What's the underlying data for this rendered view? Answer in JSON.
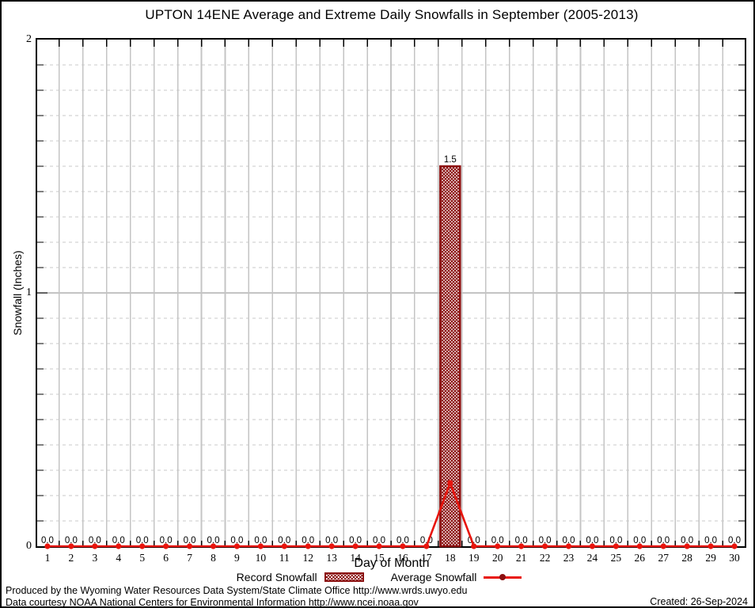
{
  "title": "UPTON 14ENE Average and Extreme Daily Snowfalls in September (2005-2013)",
  "axes": {
    "xlabel": "Day of Month",
    "ylabel": "Snowfall (Inches)"
  },
  "legend": {
    "record_label": "Record Snowfall",
    "average_label": "Average Snowfall"
  },
  "footer": {
    "produced_by": "Produced by the Wyoming Water Resources Data System/State Climate Office http://www.wrds.uwyo.edu",
    "data_courtesy": "Data courtesy NOAA National Centers for Environmental Information http://www.ncei.noaa.gov",
    "created": "Created: 26-Sep-2024"
  },
  "colors": {
    "record_bar": "#8b0f0f",
    "average_line": "#e8140c",
    "grid_solid": "#c4c4c4",
    "grid_dashed": "#c9c9c9",
    "frame": "#000000",
    "text": "#000000"
  },
  "chart_data": {
    "type": "bar",
    "title": "UPTON 14ENE Average and Extreme Daily Snowfalls in September (2005-2013)",
    "xlabel": "Day of Month",
    "ylabel": "Snowfall (Inches)",
    "ylim": [
      0,
      2
    ],
    "yticks": [
      0,
      1,
      2
    ],
    "minor_y_step": 0.1,
    "grid": "on",
    "legend_position": "bottom",
    "categories": [
      1,
      2,
      3,
      4,
      5,
      6,
      7,
      8,
      9,
      10,
      11,
      12,
      13,
      14,
      15,
      16,
      17,
      18,
      19,
      20,
      21,
      22,
      23,
      24,
      25,
      26,
      27,
      28,
      29,
      30
    ],
    "series": [
      {
        "name": "Record Snowfall",
        "type": "bar",
        "values": [
          0,
          0,
          0,
          0,
          0,
          0,
          0,
          0,
          0,
          0,
          0,
          0,
          0,
          0,
          0,
          0,
          0,
          1.5,
          0,
          0,
          0,
          0,
          0,
          0,
          0,
          0,
          0,
          0,
          0,
          0
        ]
      },
      {
        "name": "Average Snowfall",
        "type": "line",
        "values": [
          0,
          0,
          0,
          0,
          0,
          0,
          0,
          0,
          0,
          0,
          0,
          0,
          0,
          0,
          0,
          0,
          0,
          0.25,
          0,
          0,
          0,
          0,
          0,
          0,
          0,
          0,
          0,
          0,
          0,
          0
        ]
      }
    ],
    "bar_value_labels": [
      "0.0",
      "0.0",
      "0.0",
      "0.0",
      "0.0",
      "0.0",
      "0.0",
      "0.0",
      "0.0",
      "0.0",
      "0.0",
      "0.0",
      "0.0",
      "0.0",
      "0.0",
      "0.0",
      "0.0",
      "1.5",
      "0.0",
      "0.0",
      "0.0",
      "0.0",
      "0.0",
      "0.0",
      "0.0",
      "0.0",
      "0.0",
      "0.0",
      "0.0",
      "0.0"
    ]
  }
}
